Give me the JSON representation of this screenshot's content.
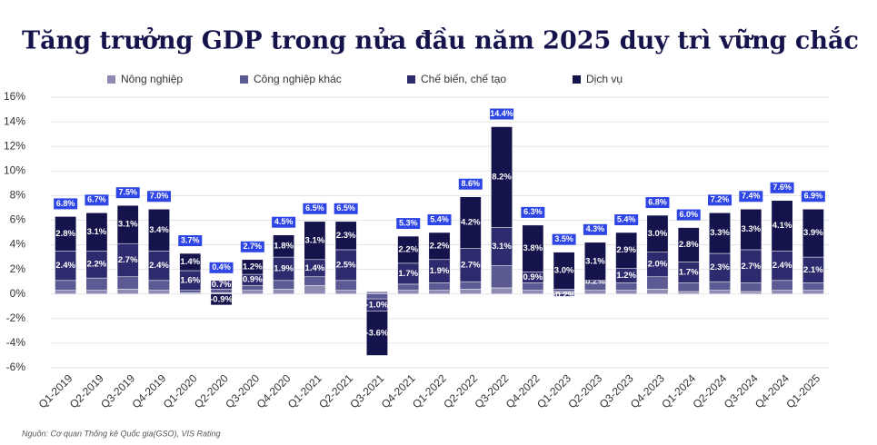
{
  "chart_data": {
    "type": "stacked_bar",
    "title": "Tăng trưởng GDP trong nửa đầu năm 2025 duy trì vững chắc",
    "source": "Nguồn: Cơ quan Thống kê Quốc gia(GSO), VIS Rating",
    "categories": [
      "Q1-2019",
      "Q2-2019",
      "Q3-2019",
      "Q4-2019",
      "Q1-2020",
      "Q2-2020",
      "Q3-2020",
      "Q4-2020",
      "Q1-2021",
      "Q2-2021",
      "Q3-2021",
      "Q4-2021",
      "Q1-2022",
      "Q2-2022",
      "Q3-2022",
      "Q4-2022",
      "Q1-2023",
      "Q2-2023",
      "Q3-2023",
      "Q4-2023",
      "Q1-2024",
      "Q2-2024",
      "Q3-2024",
      "Q4-2024",
      "Q1-2025"
    ],
    "series": [
      {
        "name": "Nông nghiệp",
        "color": "#8e8cb3",
        "values": [
          0.3,
          0.3,
          0.4,
          0.3,
          0.1,
          0.1,
          0.3,
          0.4,
          0.7,
          0.3,
          0.2,
          0.3,
          0.3,
          0.4,
          0.5,
          0.3,
          0.2,
          0.3,
          0.3,
          0.4,
          0.2,
          0.3,
          0.2,
          0.3,
          0.3
        ]
      },
      {
        "name": "Công nghiệp khác",
        "color": "#5c5a92",
        "values": [
          0.8,
          1.0,
          1.0,
          0.8,
          0.2,
          0.3,
          0.4,
          0.7,
          0.7,
          0.8,
          -0.4,
          0.5,
          0.6,
          0.6,
          1.8,
          0.6,
          0.2,
          0.6,
          0.6,
          1.0,
          0.7,
          0.7,
          0.7,
          0.8,
          0.6
        ]
      },
      {
        "name": "Chế biến, chế tạo",
        "color": "#2d2b6e",
        "values": [
          2.4,
          2.2,
          2.7,
          2.4,
          1.6,
          0.7,
          0.9,
          1.9,
          1.4,
          2.5,
          -1.0,
          1.7,
          1.9,
          2.7,
          3.1,
          0.9,
          -0.2,
          0.2,
          1.2,
          2.0,
          1.7,
          2.3,
          2.7,
          2.4,
          2.1
        ],
        "value_labels": [
          "2.4%",
          "2.2%",
          "2.7%",
          "2.4%",
          "1.6%",
          "0.7%",
          "0.9%",
          "1.9%",
          "1.4%",
          "2.5%",
          "-1.0%",
          "1.7%",
          "1.9%",
          "2.7%",
          "3.1%",
          "0.9%",
          "-0.2%",
          "0.2%",
          "1.2%",
          "2.0%",
          "1.7%",
          "2.3%",
          "2.7%",
          "2.4%",
          "2.1%"
        ]
      },
      {
        "name": "Dịch vụ",
        "color": "#15134b",
        "values": [
          2.8,
          3.1,
          3.1,
          3.4,
          1.4,
          -0.9,
          1.2,
          1.8,
          3.1,
          2.3,
          -3.6,
          2.2,
          2.2,
          4.2,
          8.2,
          3.8,
          3.0,
          3.1,
          2.9,
          3.0,
          2.8,
          3.3,
          3.3,
          4.1,
          3.9
        ],
        "value_labels": [
          "2.8%",
          "3.1%",
          "3.1%",
          "3.4%",
          "1.4%",
          "-0.9%",
          "1.2%",
          "1.8%",
          "3.1%",
          "2.3%",
          "-3.6%",
          "2.2%",
          "2.2%",
          "4.2%",
          "8.2%",
          "3.8%",
          "3.0%",
          "3.1%",
          "2.9%",
          "3.0%",
          "2.8%",
          "3.3%",
          "3.3%",
          "4.1%",
          "3.9%"
        ]
      }
    ],
    "totals": {
      "color": "#2f46e6",
      "values": [
        6.8,
        6.7,
        7.5,
        7.0,
        3.7,
        0.4,
        2.7,
        4.5,
        6.5,
        6.5,
        null,
        5.3,
        5.4,
        8.6,
        14.4,
        6.3,
        3.5,
        4.3,
        5.4,
        6.8,
        6.0,
        7.2,
        7.4,
        7.6,
        6.9
      ],
      "value_labels": [
        "6.8%",
        "6.7%",
        "7.5%",
        "7.0%",
        "3.7%",
        "0.4%",
        "2.7%",
        "4.5%",
        "6.5%",
        "6.5%",
        null,
        "5.3%",
        "5.4%",
        "8.6%",
        "14.4%",
        "6.3%",
        "3.5%",
        "4.3%",
        "5.4%",
        "6.8%",
        "6.0%",
        "7.2%",
        "7.4%",
        "7.6%",
        "6.9%"
      ]
    },
    "ylim": [
      -6,
      16
    ],
    "yticks": [
      {
        "value": -6,
        "label": "-6%"
      },
      {
        "value": -4,
        "label": "-4%"
      },
      {
        "value": -2,
        "label": "-2%"
      },
      {
        "value": 0,
        "label": "0%"
      },
      {
        "value": 2,
        "label": "2%"
      },
      {
        "value": 4,
        "label": "4%"
      },
      {
        "value": 6,
        "label": "6%"
      },
      {
        "value": 8,
        "label": "8%"
      },
      {
        "value": 10,
        "label": "10%"
      },
      {
        "value": 12,
        "label": "12%"
      },
      {
        "value": 14,
        "label": "14%"
      },
      {
        "value": 16,
        "label": "16%"
      }
    ],
    "grid": true
  }
}
